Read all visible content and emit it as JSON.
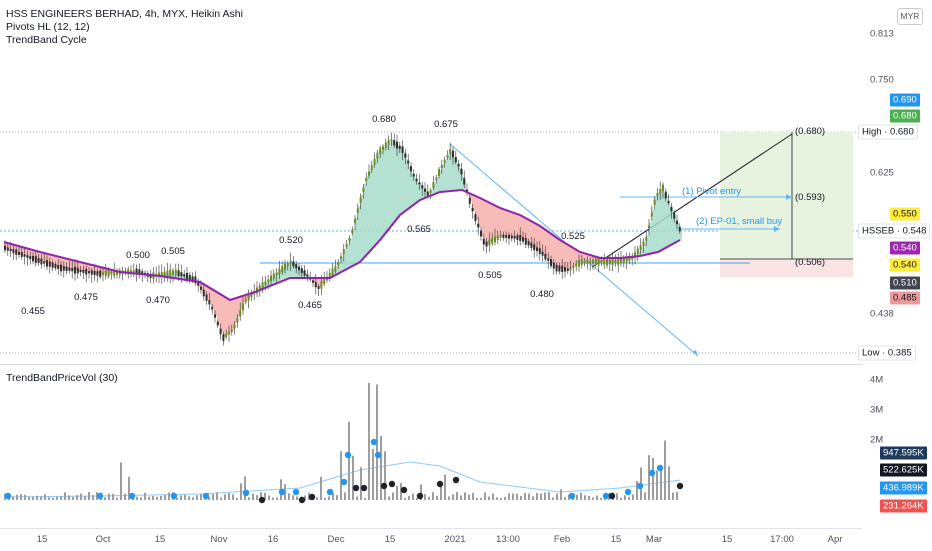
{
  "legend": {
    "title": "HSS ENGINEERS BERHAD, 4h, MYX, Heikin Ashi",
    "pivots": "Pivots HL (12, 12)",
    "trendband": "TrendBand Cycle"
  },
  "currency": "MYR",
  "volume_pane": {
    "title": "TrendBandPriceVol (30)"
  },
  "price_axis_ticks": [
    "0.813",
    "0.750",
    "0.625",
    "0.438"
  ],
  "price_badges": [
    {
      "text": "0.690",
      "bg": "#2196f3",
      "fg": "#ffffff"
    },
    {
      "text": "0.680",
      "bg": "#4caf50",
      "fg": "#ffffff"
    },
    {
      "text": "High · 0.680",
      "bg": "#ffffff",
      "fg": "#131722"
    },
    {
      "text": "0.550",
      "bg": "#ffeb3b",
      "fg": "#131722"
    },
    {
      "text": "HSSEB · 0.548",
      "bg": "#ffffff",
      "fg": "#131722"
    },
    {
      "text": "0.540",
      "bg": "#9c27b0",
      "fg": "#ffffff"
    },
    {
      "text": "0.540",
      "bg": "#ffeb3b",
      "fg": "#131722"
    },
    {
      "text": "0.510",
      "bg": "#434651",
      "fg": "#ffffff"
    },
    {
      "text": "0.485",
      "bg": "#ef9a9a",
      "fg": "#131722"
    },
    {
      "text": "Low · 0.385",
      "bg": "#ffffff",
      "fg": "#131722"
    }
  ],
  "volume_axis_ticks": [
    "4M",
    "3M",
    "2M"
  ],
  "volume_badges": [
    {
      "text": "947.595K",
      "bg": "#1e3a5f",
      "fg": "#ffffff"
    },
    {
      "text": "522.625K",
      "bg": "#131722",
      "fg": "#ffffff"
    },
    {
      "text": "436.989K",
      "bg": "#2196f3",
      "fg": "#ffffff"
    },
    {
      "text": "231.264K",
      "bg": "#ef5350",
      "fg": "#ffffff"
    }
  ],
  "time_axis": [
    "15",
    "Oct",
    "15",
    "Nov",
    "16",
    "Dec",
    "15",
    "2021",
    "13:00",
    "Feb",
    "15",
    "Mar",
    "15",
    "17:00",
    "Apr"
  ],
  "pivot_labels": [
    "0.455",
    "0.475",
    "0.500",
    "0.470",
    "0.505",
    "0.520",
    "0.465",
    "0.680",
    "0.565",
    "0.675",
    "0.505",
    "0.480",
    "0.525"
  ],
  "annotations": {
    "pivot_entry": "(1) Pivot entry",
    "ep01": "(2) EP-01, small buy",
    "target": "(0.680)",
    "mid": "(0.593)",
    "stop": "(0.506)"
  },
  "colors": {
    "ma": "#8e24aa",
    "bull_fill": "#a7dcc9",
    "bear_fill": "#f6b0ab",
    "trendline": "#64b5f6",
    "range_green": "#e8f3df",
    "range_red": "#fbe4e4",
    "vol_bar": "#9e9ea0",
    "vol_avg": "#90caf9"
  }
}
